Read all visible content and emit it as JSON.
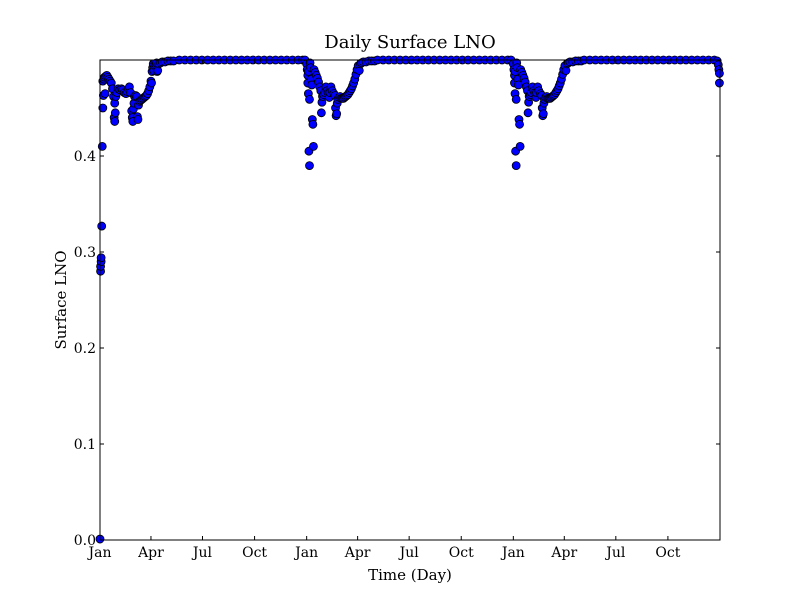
{
  "chart_data": {
    "type": "scatter",
    "title": "Daily Surface LNO",
    "xlabel": "Time (Day)",
    "ylabel": "Surface LNO",
    "xlim": [
      0,
      1095
    ],
    "ylim": [
      0.0,
      0.5
    ],
    "grid": false,
    "marker_color": "#0000ff",
    "marker_edge_color": "#000000",
    "x_ticks": [
      {
        "day": 0,
        "label": "Jan"
      },
      {
        "day": 90,
        "label": "Apr"
      },
      {
        "day": 181,
        "label": "Jul"
      },
      {
        "day": 273,
        "label": "Oct"
      },
      {
        "day": 365,
        "label": "Jan"
      },
      {
        "day": 455,
        "label": "Apr"
      },
      {
        "day": 546,
        "label": "Jul"
      },
      {
        "day": 638,
        "label": "Oct"
      },
      {
        "day": 730,
        "label": "Jan"
      },
      {
        "day": 820,
        "label": "Apr"
      },
      {
        "day": 911,
        "label": "Jul"
      },
      {
        "day": 1003,
        "label": "Oct"
      }
    ],
    "y_ticks": [
      {
        "value": 0.0,
        "label": "0.0"
      },
      {
        "value": 0.1,
        "label": "0.1"
      },
      {
        "value": 0.2,
        "label": "0.2"
      },
      {
        "value": 0.3,
        "label": "0.3"
      },
      {
        "value": 0.4,
        "label": "0.4"
      }
    ],
    "series": [
      {
        "points": [
          [
            0,
            0.001
          ],
          [
            1,
            0.28
          ],
          [
            1,
            0.285
          ],
          [
            2,
            0.29
          ],
          [
            2,
            0.294
          ],
          [
            3,
            0.327
          ],
          [
            4,
            0.41
          ],
          [
            5,
            0.45
          ],
          [
            5,
            0.478
          ],
          [
            6,
            0.463
          ],
          [
            7,
            0.48
          ],
          [
            8,
            0.482
          ],
          [
            9,
            0.465
          ],
          [
            10,
            0.483
          ],
          [
            12,
            0.484
          ],
          [
            14,
            0.482
          ],
          [
            16,
            0.48
          ],
          [
            18,
            0.478
          ],
          [
            20,
            0.476
          ],
          [
            22,
            0.47
          ],
          [
            24,
            0.462
          ],
          [
            25,
            0.44
          ],
          [
            26,
            0.436
          ],
          [
            26,
            0.455
          ],
          [
            27,
            0.445
          ],
          [
            28,
            0.462
          ],
          [
            30,
            0.466
          ],
          [
            32,
            0.47
          ],
          [
            35,
            0.469
          ],
          [
            38,
            0.47
          ],
          [
            40,
            0.469
          ],
          [
            43,
            0.466
          ],
          [
            46,
            0.465
          ],
          [
            48,
            0.467
          ],
          [
            50,
            0.47
          ],
          [
            52,
            0.472
          ],
          [
            54,
            0.466
          ],
          [
            56,
            0.447
          ],
          [
            57,
            0.44
          ],
          [
            58,
            0.436
          ],
          [
            59,
            0.449
          ],
          [
            60,
            0.455
          ],
          [
            61,
            0.462
          ],
          [
            63,
            0.463
          ],
          [
            65,
            0.462
          ],
          [
            66,
            0.441
          ],
          [
            67,
            0.438
          ],
          [
            68,
            0.453
          ],
          [
            70,
            0.457
          ],
          [
            72,
            0.458
          ],
          [
            74,
            0.459
          ],
          [
            76,
            0.46
          ],
          [
            78,
            0.461
          ],
          [
            80,
            0.462
          ],
          [
            82,
            0.463
          ],
          [
            84,
            0.465
          ],
          [
            86,
            0.468
          ],
          [
            88,
            0.472
          ],
          [
            90,
            0.478
          ],
          [
            91,
            0.476
          ],
          [
            92,
            0.488
          ],
          [
            93,
            0.492
          ],
          [
            94,
            0.496
          ],
          [
            95,
            0.489
          ],
          [
            97,
            0.494
          ],
          [
            99,
            0.495
          ],
          [
            100,
            0.497
          ],
          [
            101,
            0.488
          ],
          [
            102,
            0.489
          ],
          [
            104,
            0.496
          ],
          [
            107,
            0.497
          ],
          [
            110,
            0.498
          ],
          [
            115,
            0.498
          ],
          [
            120,
            0.499
          ],
          [
            125,
            0.499
          ],
          [
            130,
            0.499
          ],
          [
            140,
            0.5
          ],
          [
            150,
            0.5
          ],
          [
            160,
            0.5
          ],
          [
            170,
            0.5
          ],
          [
            180,
            0.5
          ],
          [
            190,
            0.5
          ],
          [
            200,
            0.5
          ],
          [
            210,
            0.5
          ],
          [
            220,
            0.5
          ],
          [
            230,
            0.5
          ],
          [
            240,
            0.5
          ],
          [
            250,
            0.5
          ],
          [
            260,
            0.5
          ],
          [
            270,
            0.5
          ],
          [
            280,
            0.5
          ],
          [
            290,
            0.5
          ],
          [
            300,
            0.5
          ],
          [
            310,
            0.5
          ],
          [
            320,
            0.5
          ],
          [
            330,
            0.5
          ],
          [
            340,
            0.5
          ],
          [
            350,
            0.5
          ],
          [
            358,
            0.5
          ],
          [
            362,
            0.5
          ],
          [
            365,
            0.496
          ],
          [
            366,
            0.49
          ],
          [
            367,
            0.484
          ],
          [
            367,
            0.476
          ],
          [
            368,
            0.465
          ],
          [
            368,
            0.488
          ],
          [
            369,
            0.405
          ],
          [
            370,
            0.459
          ],
          [
            370,
            0.39
          ],
          [
            371,
            0.497
          ],
          [
            372,
            0.492
          ],
          [
            373,
            0.48
          ],
          [
            374,
            0.474
          ],
          [
            375,
            0.438
          ],
          [
            376,
            0.433
          ],
          [
            377,
            0.41
          ],
          [
            378,
            0.49
          ],
          [
            380,
            0.487
          ],
          [
            382,
            0.484
          ],
          [
            384,
            0.481
          ],
          [
            386,
            0.477
          ],
          [
            388,
            0.472
          ],
          [
            390,
            0.468
          ],
          [
            391,
            0.445
          ],
          [
            392,
            0.456
          ],
          [
            393,
            0.462
          ],
          [
            395,
            0.464
          ],
          [
            397,
            0.466
          ],
          [
            399,
            0.472
          ],
          [
            401,
            0.468
          ],
          [
            403,
            0.466
          ],
          [
            405,
            0.461
          ],
          [
            406,
            0.466
          ],
          [
            408,
            0.472
          ],
          [
            410,
            0.468
          ],
          [
            413,
            0.465
          ],
          [
            415,
            0.463
          ],
          [
            416,
            0.45
          ],
          [
            417,
            0.442
          ],
          [
            418,
            0.444
          ],
          [
            419,
            0.455
          ],
          [
            420,
            0.459
          ],
          [
            422,
            0.461
          ],
          [
            424,
            0.462
          ],
          [
            426,
            0.46
          ],
          [
            428,
            0.46
          ],
          [
            430,
            0.46
          ],
          [
            432,
            0.461
          ],
          [
            434,
            0.462
          ],
          [
            436,
            0.463
          ],
          [
            438,
            0.464
          ],
          [
            440,
            0.466
          ],
          [
            442,
            0.468
          ],
          [
            444,
            0.47
          ],
          [
            446,
            0.473
          ],
          [
            448,
            0.476
          ],
          [
            450,
            0.48
          ],
          [
            452,
            0.485
          ],
          [
            454,
            0.49
          ],
          [
            456,
            0.494
          ],
          [
            458,
            0.489
          ],
          [
            460,
            0.496
          ],
          [
            462,
            0.497
          ],
          [
            465,
            0.498
          ],
          [
            470,
            0.498
          ],
          [
            475,
            0.499
          ],
          [
            480,
            0.499
          ],
          [
            485,
            0.499
          ],
          [
            490,
            0.5
          ],
          [
            500,
            0.5
          ],
          [
            510,
            0.5
          ],
          [
            520,
            0.5
          ],
          [
            530,
            0.5
          ],
          [
            540,
            0.5
          ],
          [
            550,
            0.5
          ],
          [
            560,
            0.5
          ],
          [
            570,
            0.5
          ],
          [
            580,
            0.5
          ],
          [
            590,
            0.5
          ],
          [
            600,
            0.5
          ],
          [
            610,
            0.5
          ],
          [
            620,
            0.5
          ],
          [
            630,
            0.5
          ],
          [
            640,
            0.5
          ],
          [
            650,
            0.5
          ],
          [
            660,
            0.5
          ],
          [
            670,
            0.5
          ],
          [
            680,
            0.5
          ],
          [
            690,
            0.5
          ],
          [
            700,
            0.5
          ],
          [
            710,
            0.5
          ],
          [
            720,
            0.5
          ],
          [
            726,
            0.5
          ],
          [
            730,
            0.496
          ],
          [
            731,
            0.49
          ],
          [
            732,
            0.484
          ],
          [
            732,
            0.476
          ],
          [
            733,
            0.465
          ],
          [
            733,
            0.488
          ],
          [
            734,
            0.405
          ],
          [
            735,
            0.459
          ],
          [
            735,
            0.39
          ],
          [
            736,
            0.497
          ],
          [
            737,
            0.492
          ],
          [
            738,
            0.48
          ],
          [
            739,
            0.474
          ],
          [
            740,
            0.438
          ],
          [
            741,
            0.433
          ],
          [
            742,
            0.41
          ],
          [
            743,
            0.49
          ],
          [
            745,
            0.487
          ],
          [
            747,
            0.484
          ],
          [
            749,
            0.481
          ],
          [
            751,
            0.477
          ],
          [
            753,
            0.472
          ],
          [
            755,
            0.468
          ],
          [
            756,
            0.445
          ],
          [
            757,
            0.456
          ],
          [
            758,
            0.462
          ],
          [
            760,
            0.464
          ],
          [
            762,
            0.466
          ],
          [
            764,
            0.472
          ],
          [
            766,
            0.468
          ],
          [
            768,
            0.466
          ],
          [
            770,
            0.461
          ],
          [
            771,
            0.466
          ],
          [
            773,
            0.472
          ],
          [
            775,
            0.468
          ],
          [
            778,
            0.465
          ],
          [
            780,
            0.463
          ],
          [
            781,
            0.45
          ],
          [
            782,
            0.442
          ],
          [
            783,
            0.444
          ],
          [
            784,
            0.455
          ],
          [
            785,
            0.459
          ],
          [
            787,
            0.461
          ],
          [
            789,
            0.462
          ],
          [
            791,
            0.46
          ],
          [
            793,
            0.46
          ],
          [
            795,
            0.46
          ],
          [
            797,
            0.461
          ],
          [
            799,
            0.462
          ],
          [
            801,
            0.463
          ],
          [
            803,
            0.464
          ],
          [
            805,
            0.466
          ],
          [
            807,
            0.468
          ],
          [
            809,
            0.47
          ],
          [
            811,
            0.473
          ],
          [
            813,
            0.476
          ],
          [
            815,
            0.48
          ],
          [
            817,
            0.485
          ],
          [
            819,
            0.49
          ],
          [
            821,
            0.494
          ],
          [
            823,
            0.489
          ],
          [
            825,
            0.496
          ],
          [
            827,
            0.497
          ],
          [
            830,
            0.498
          ],
          [
            835,
            0.498
          ],
          [
            840,
            0.499
          ],
          [
            845,
            0.499
          ],
          [
            850,
            0.499
          ],
          [
            855,
            0.5
          ],
          [
            865,
            0.5
          ],
          [
            875,
            0.5
          ],
          [
            885,
            0.5
          ],
          [
            895,
            0.5
          ],
          [
            905,
            0.5
          ],
          [
            915,
            0.5
          ],
          [
            925,
            0.5
          ],
          [
            935,
            0.5
          ],
          [
            945,
            0.5
          ],
          [
            955,
            0.5
          ],
          [
            965,
            0.5
          ],
          [
            975,
            0.5
          ],
          [
            985,
            0.5
          ],
          [
            995,
            0.5
          ],
          [
            1005,
            0.5
          ],
          [
            1015,
            0.5
          ],
          [
            1025,
            0.5
          ],
          [
            1035,
            0.5
          ],
          [
            1045,
            0.5
          ],
          [
            1055,
            0.5
          ],
          [
            1065,
            0.5
          ],
          [
            1075,
            0.5
          ],
          [
            1085,
            0.5
          ],
          [
            1090,
            0.499
          ],
          [
            1092,
            0.495
          ],
          [
            1093,
            0.49
          ],
          [
            1094,
            0.486
          ],
          [
            1094,
            0.476
          ]
        ]
      }
    ]
  }
}
